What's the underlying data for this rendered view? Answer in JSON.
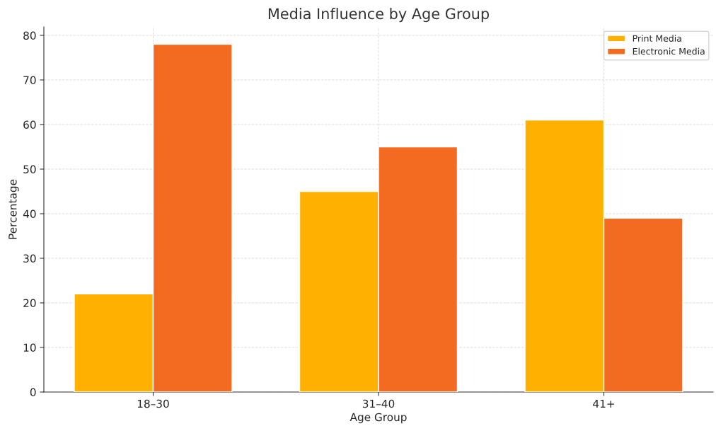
{
  "chart_data": {
    "type": "bar",
    "title": "Media Influence by Age Group",
    "xlabel": "Age Group",
    "ylabel": "Percentage",
    "categories": [
      "18–30",
      "31–40",
      "41+"
    ],
    "series": [
      {
        "name": "Print Media",
        "color": "#ffb000",
        "values": [
          22,
          45,
          61
        ]
      },
      {
        "name": "Electronic Media",
        "color": "#f26b21",
        "values": [
          78,
          55,
          39
        ]
      }
    ],
    "ylim": [
      0,
      81.9
    ],
    "yticks": [
      0,
      10,
      20,
      30,
      40,
      50,
      60,
      70,
      80
    ],
    "grid": true,
    "legend": "top right"
  }
}
